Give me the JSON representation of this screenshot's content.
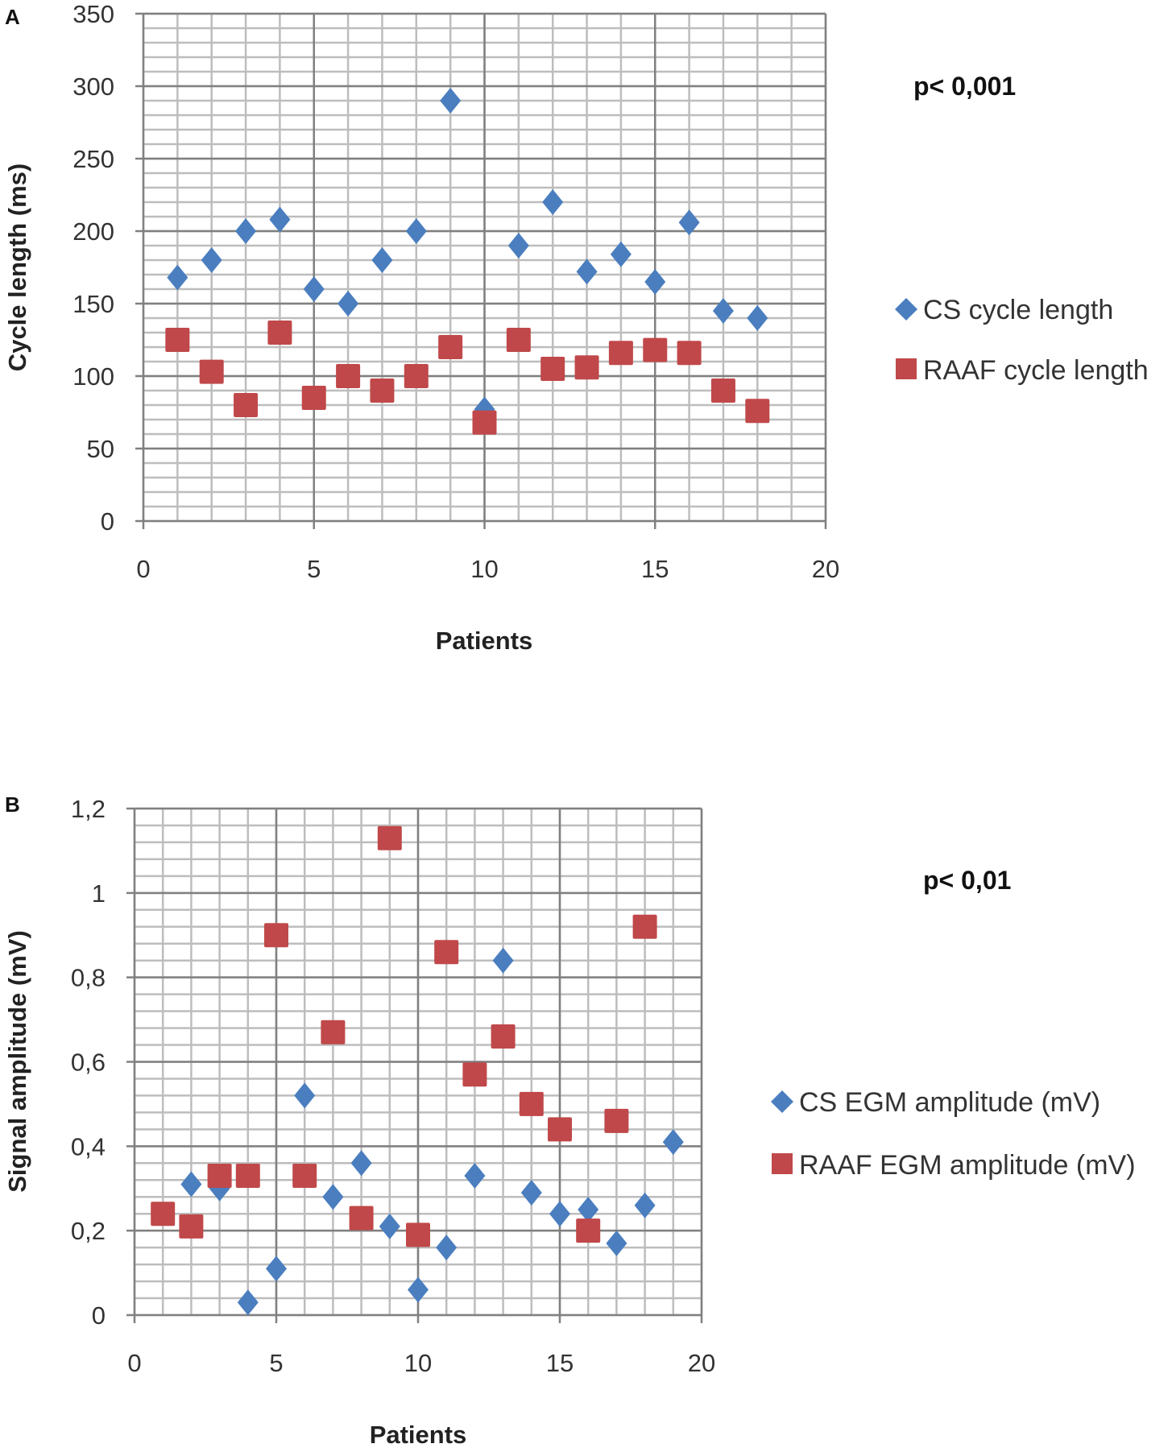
{
  "colors": {
    "cs": "#4a7ebf",
    "raaf": "#c0484a",
    "grid_major": "#808080",
    "grid_minor": "#bdbdbd"
  },
  "chart_data": [
    {
      "type": "scatter",
      "panel_label": "A",
      "annotation": "p< 0,001",
      "xlabel": "Patients",
      "ylabel": "Cycle length (ms)",
      "xlim": [
        0,
        20
      ],
      "ylim": [
        0,
        350
      ],
      "xticks": [
        0,
        5,
        10,
        15,
        20
      ],
      "yticks": [
        0,
        50,
        100,
        150,
        200,
        250,
        300,
        350
      ],
      "ytick_labels": [
        "0",
        "50",
        "100",
        "150",
        "200",
        "250",
        "300",
        "350"
      ],
      "minor_x": 1,
      "minor_y": 10,
      "grid": true,
      "legend_position": "right",
      "series": [
        {
          "name": "CS cycle length",
          "marker": "diamond",
          "x": [
            1,
            2,
            3,
            4,
            5,
            6,
            7,
            8,
            9,
            10,
            11,
            12,
            13,
            14,
            15,
            16,
            17,
            18
          ],
          "y": [
            168,
            180,
            200,
            208,
            160,
            150,
            180,
            200,
            290,
            77,
            190,
            220,
            172,
            184,
            165,
            206,
            145,
            140
          ]
        },
        {
          "name": "RAAF cycle length",
          "marker": "square",
          "x": [
            1,
            2,
            3,
            4,
            5,
            6,
            7,
            8,
            9,
            10,
            11,
            12,
            13,
            14,
            15,
            16,
            17,
            18
          ],
          "y": [
            125,
            103,
            80,
            130,
            85,
            100,
            90,
            100,
            120,
            68,
            125,
            105,
            106,
            116,
            118,
            116,
            90,
            76
          ]
        }
      ]
    },
    {
      "type": "scatter",
      "panel_label": "B",
      "annotation": "p< 0,01",
      "xlabel": "Patients",
      "ylabel": "Signal amplitude (mV)",
      "xlim": [
        0,
        20
      ],
      "ylim": [
        0,
        1.2
      ],
      "xticks": [
        0,
        5,
        10,
        15,
        20
      ],
      "yticks": [
        0,
        0.2,
        0.4,
        0.6,
        0.8,
        1,
        1.2
      ],
      "ytick_labels": [
        "0",
        "0,2",
        "0,4",
        "0,6",
        "0,8",
        "1",
        "1,2"
      ],
      "minor_x": 1,
      "minor_y": 0.04,
      "grid": true,
      "legend_position": "right",
      "series": [
        {
          "name": "CS EGM amplitude (mV)",
          "marker": "diamond",
          "x": [
            2,
            3,
            4,
            5,
            6,
            7,
            8,
            9,
            10,
            11,
            12,
            13,
            14,
            15,
            16,
            17,
            18,
            19
          ],
          "y": [
            0.31,
            0.3,
            0.03,
            0.11,
            0.52,
            0.28,
            0.36,
            0.21,
            0.06,
            0.16,
            0.33,
            0.84,
            0.29,
            0.24,
            0.25,
            0.17,
            0.26,
            0.41
          ]
        },
        {
          "name": "RAAF EGM amplitude (mV)",
          "marker": "square",
          "x": [
            1,
            2,
            3,
            4,
            5,
            6,
            7,
            8,
            9,
            10,
            11,
            12,
            13,
            14,
            15,
            16,
            17,
            18
          ],
          "y": [
            0.24,
            0.21,
            0.33,
            0.33,
            0.9,
            0.33,
            0.67,
            0.23,
            1.13,
            0.19,
            0.86,
            0.57,
            0.66,
            0.5,
            0.44,
            0.2,
            0.46,
            0.92
          ]
        }
      ]
    }
  ]
}
